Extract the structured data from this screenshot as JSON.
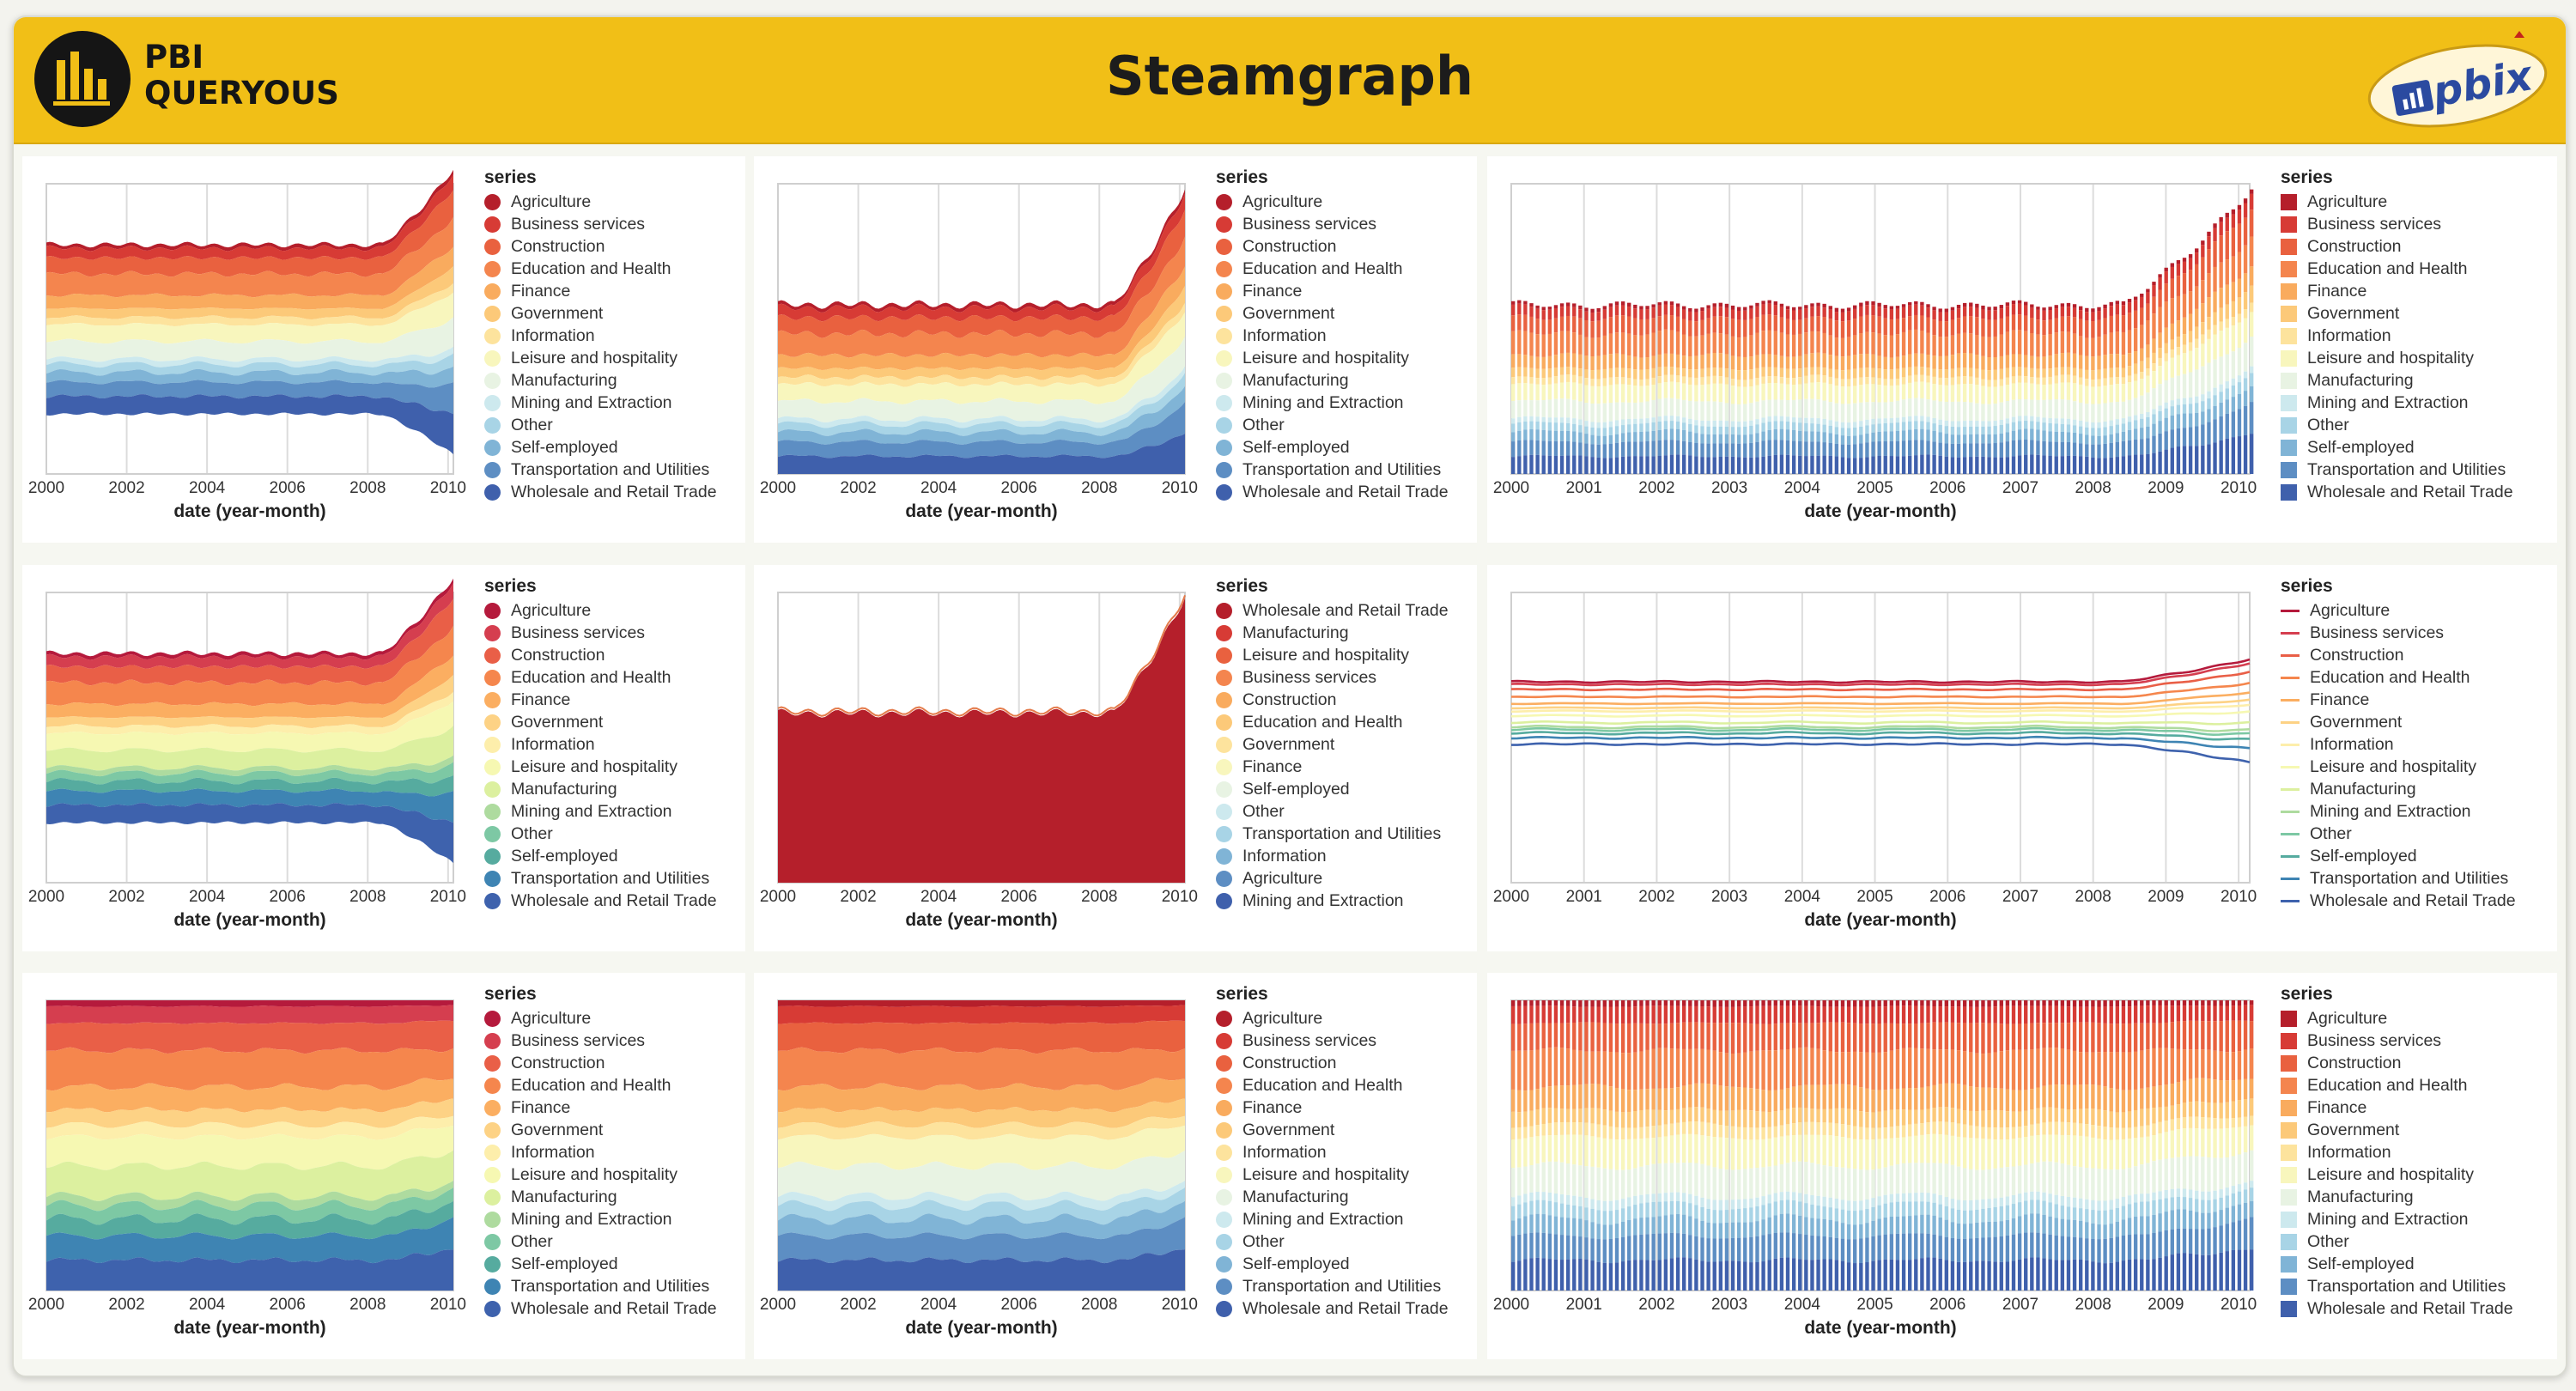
{
  "header": {
    "title": "Steamgraph",
    "brand_line1": "PBI",
    "brand_line2": "QUERYOUS",
    "badge_text": "pbix"
  },
  "colors": {
    "header_bg": "#f1bf17"
  },
  "series_default": [
    "Agriculture",
    "Business services",
    "Construction",
    "Education and Health",
    "Finance",
    "Government",
    "Information",
    "Leisure and hospitality",
    "Manufacturing",
    "Mining and Extraction",
    "Other",
    "Self-employed",
    "Transportation and Utilities",
    "Wholesale and Retail Trade"
  ],
  "series_sorted": [
    "Wholesale and Retail Trade",
    "Manufacturing",
    "Leisure and hospitality",
    "Business services",
    "Construction",
    "Education and Health",
    "Government",
    "Finance",
    "Self-employed",
    "Other",
    "Transportation and Utilities",
    "Information",
    "Agriculture",
    "Mining and Extraction"
  ],
  "chart_data": [
    {
      "type": "area",
      "stack": "center",
      "legend_title": "series",
      "xlabel": "date (year-month)",
      "x_ticks": [
        "2000",
        "2002",
        "2004",
        "2006",
        "2008",
        "2010"
      ],
      "x_range": [
        "2000-01",
        "2010-02"
      ],
      "palette": "RdYlBu",
      "legend_symbol": "circle"
    },
    {
      "type": "area",
      "stack": "zero",
      "legend_title": "series",
      "xlabel": "date (year-month)",
      "x_ticks": [
        "2000",
        "2002",
        "2004",
        "2006",
        "2008",
        "2010"
      ],
      "x_range": [
        "2000-01",
        "2010-02"
      ],
      "palette": "RdYlBu",
      "legend_symbol": "circle"
    },
    {
      "type": "bar",
      "stack": "zero",
      "legend_title": "series",
      "xlabel": "date (year-month)",
      "x_ticks": [
        "2000",
        "2001",
        "2002",
        "2003",
        "2004",
        "2005",
        "2006",
        "2007",
        "2008",
        "2009",
        "2010"
      ],
      "x_range": [
        "2000-01",
        "2010-02"
      ],
      "palette": "RdYlBu",
      "legend_symbol": "square"
    },
    {
      "type": "area",
      "stack": "center",
      "legend_title": "series",
      "xlabel": "date (year-month)",
      "x_ticks": [
        "2000",
        "2002",
        "2004",
        "2006",
        "2008",
        "2010"
      ],
      "x_range": [
        "2000-01",
        "2010-02"
      ],
      "palette": "Spectral",
      "legend_symbol": "circle"
    },
    {
      "type": "area",
      "stack": "overlap",
      "legend_title": "series",
      "xlabel": "date (year-month)",
      "x_ticks": [
        "2000",
        "2002",
        "2004",
        "2006",
        "2008",
        "2010"
      ],
      "x_range": [
        "2000-01",
        "2010-02"
      ],
      "palette": "RdYlBu",
      "legend_symbol": "circle",
      "series_order": "sorted"
    },
    {
      "type": "line",
      "stack": "center",
      "legend_title": "series",
      "xlabel": "date (year-month)",
      "x_ticks": [
        "2000",
        "2001",
        "2002",
        "2003",
        "2004",
        "2005",
        "2006",
        "2007",
        "2008",
        "2009",
        "2010"
      ],
      "x_range": [
        "2000-01",
        "2010-02"
      ],
      "palette": "Spectral",
      "legend_symbol": "line"
    },
    {
      "type": "area",
      "stack": "normalize",
      "legend_title": "series",
      "xlabel": "date (year-month)",
      "x_ticks": [
        "2000",
        "2002",
        "2004",
        "2006",
        "2008",
        "2010"
      ],
      "x_range": [
        "2000-01",
        "2010-02"
      ],
      "palette": "Spectral",
      "legend_symbol": "circle"
    },
    {
      "type": "area",
      "stack": "normalize",
      "legend_title": "series",
      "xlabel": "date (year-month)",
      "x_ticks": [
        "2000",
        "2002",
        "2004",
        "2006",
        "2008",
        "2010"
      ],
      "x_range": [
        "2000-01",
        "2010-02"
      ],
      "palette": "RdYlBu",
      "legend_symbol": "circle"
    },
    {
      "type": "bar",
      "stack": "normalize",
      "legend_title": "series",
      "xlabel": "date (year-month)",
      "x_ticks": [
        "2000",
        "2001",
        "2002",
        "2003",
        "2004",
        "2005",
        "2006",
        "2007",
        "2008",
        "2009",
        "2010"
      ],
      "x_range": [
        "2000-01",
        "2010-02"
      ],
      "palette": "RdYlBu",
      "legend_symbol": "square"
    }
  ]
}
